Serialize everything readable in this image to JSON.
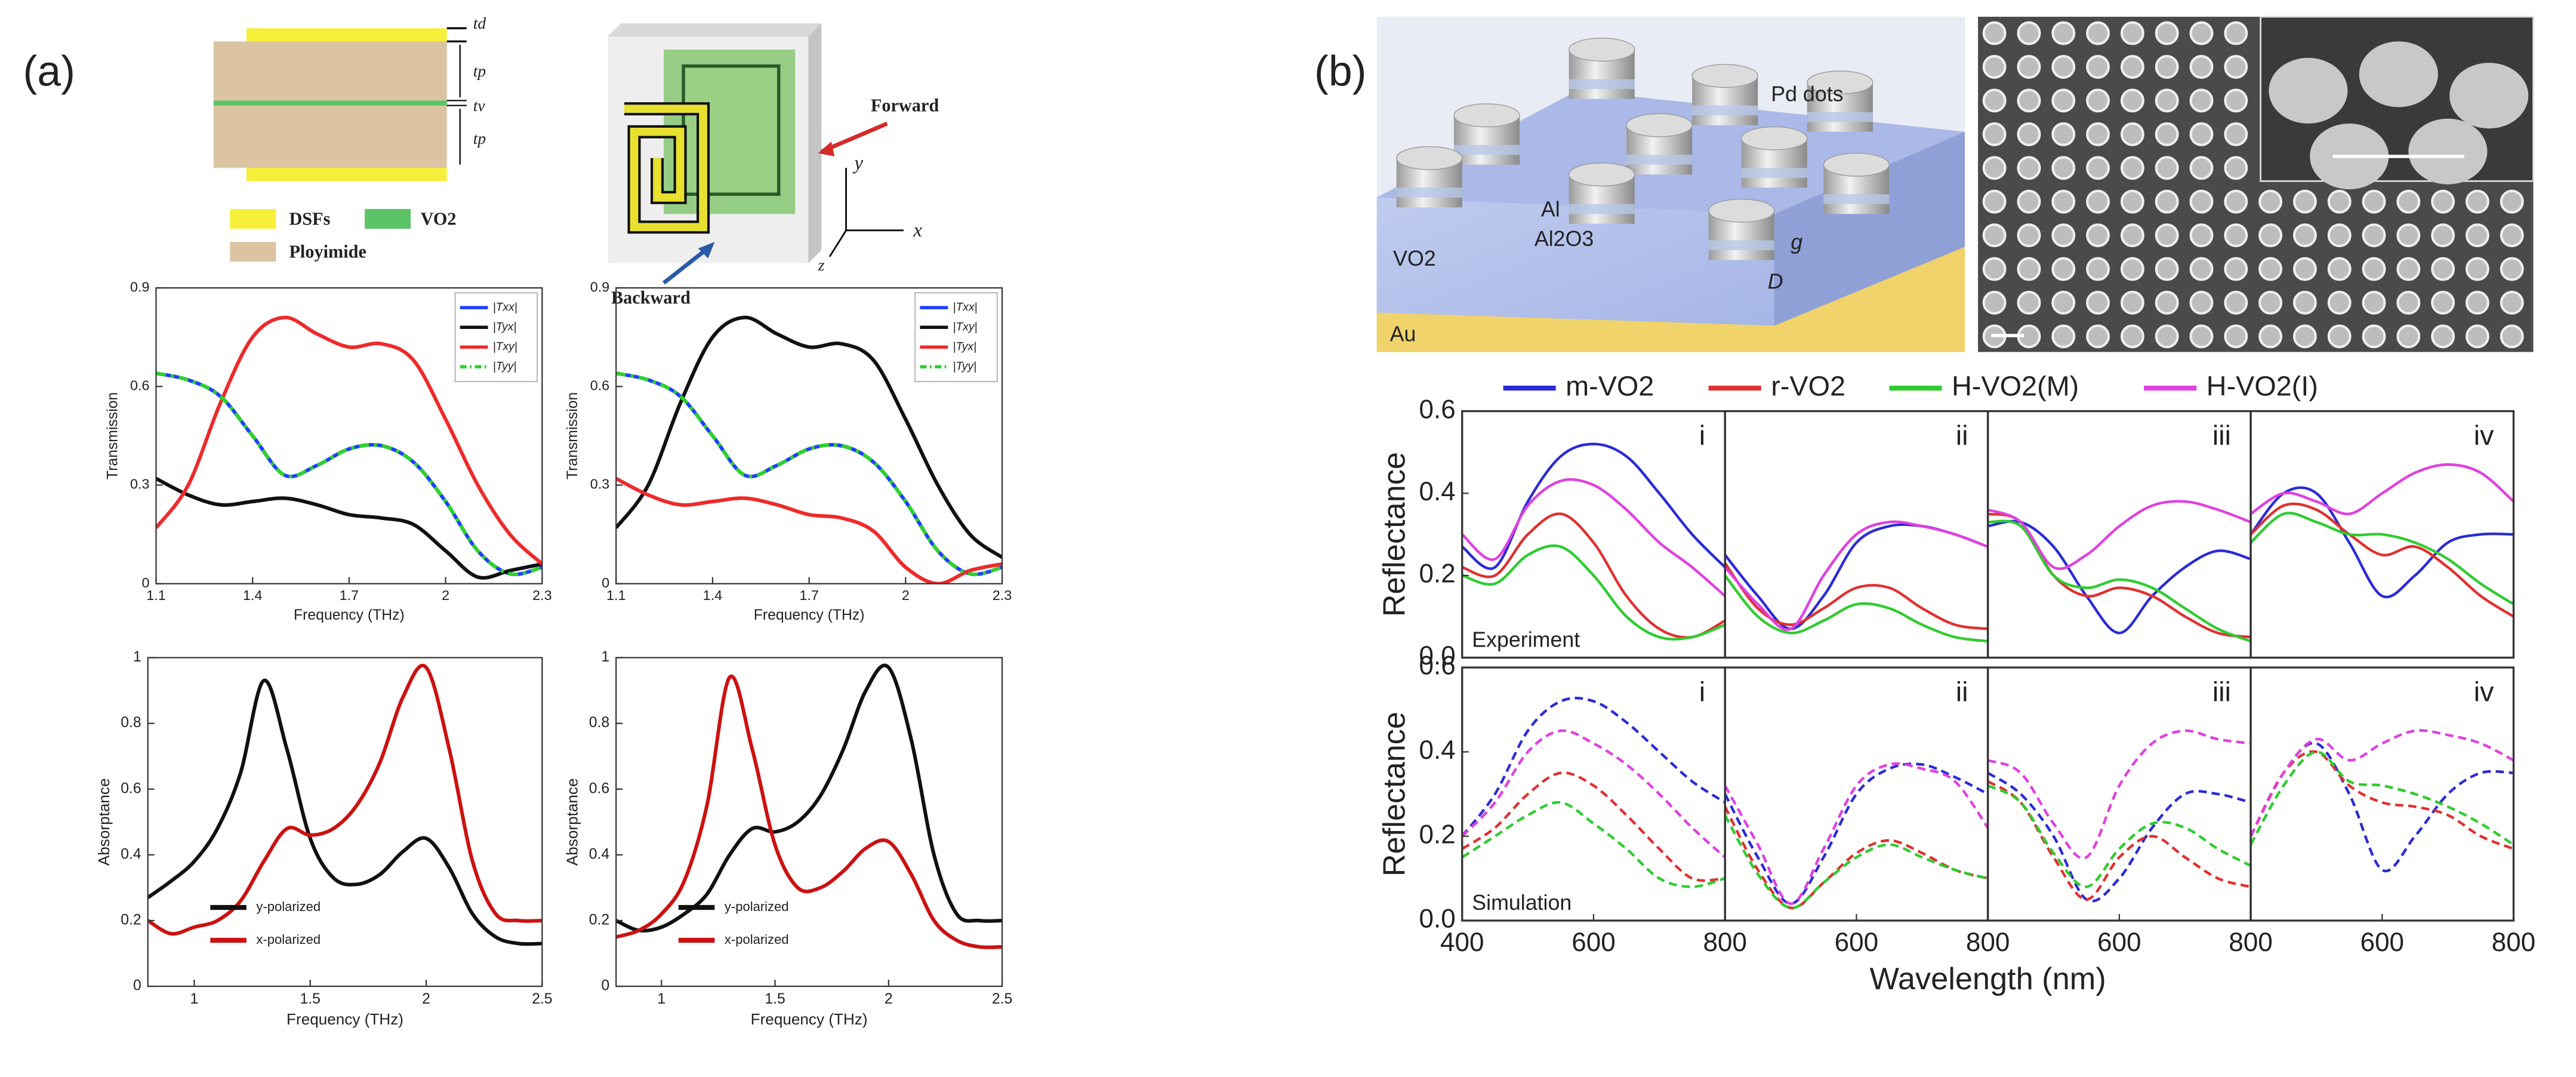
{
  "figure": {
    "panel_a": "(a)",
    "panel_b": "(b)",
    "td": "td",
    "tp1": "tp",
    "tv": "tv",
    "tp2": "tp",
    "dsfs": "DSFs",
    "vo2_legend": "VO2",
    "polyimide": "Ployimide",
    "forward": "Forward",
    "backward": "Backward",
    "ax_x": "x",
    "ax_y": "y",
    "ax_z": "z",
    "pd_dots": "Pd dots",
    "al": "Al",
    "al2o3": "Al2O3",
    "vo2_layer": "VO2",
    "au": "Au",
    "g": "g",
    "D": "D"
  },
  "chart_data": [
    {
      "type": "line",
      "xlabel": "Frequency (THz)",
      "ylabel": "Transmission",
      "legend": "upper right",
      "x": [
        1.1,
        1.2,
        1.3,
        1.4,
        1.5,
        1.6,
        1.7,
        1.8,
        1.9,
        2.0,
        2.1,
        2.2,
        2.3
      ],
      "xlim": [
        1.1,
        2.3
      ],
      "xticks": [
        1.1,
        1.4,
        1.7,
        2,
        2.3
      ],
      "ylim": [
        0,
        0.9
      ],
      "yticks": [
        0,
        0.3,
        0.6,
        0.9
      ],
      "series": [
        {
          "name": "|Txx|",
          "color": "#1f3fff",
          "values": [
            0.64,
            0.62,
            0.57,
            0.45,
            0.33,
            0.36,
            0.41,
            0.42,
            0.37,
            0.25,
            0.1,
            0.03,
            0.05
          ]
        },
        {
          "name": "|Tyx|",
          "color": "#111111",
          "values": [
            0.32,
            0.27,
            0.24,
            0.25,
            0.26,
            0.24,
            0.21,
            0.2,
            0.18,
            0.1,
            0.02,
            0.04,
            0.06
          ]
        },
        {
          "name": "|Txy|",
          "color": "#ee2a2a",
          "values": [
            0.17,
            0.3,
            0.55,
            0.75,
            0.81,
            0.76,
            0.72,
            0.73,
            0.68,
            0.5,
            0.3,
            0.15,
            0.06
          ]
        },
        {
          "name": "|Tyy|",
          "color": "#2ed12e",
          "dashed": true,
          "values": [
            0.64,
            0.62,
            0.57,
            0.45,
            0.33,
            0.36,
            0.41,
            0.42,
            0.37,
            0.25,
            0.1,
            0.03,
            0.05
          ]
        }
      ]
    },
    {
      "type": "line",
      "xlabel": "Frequency (THz)",
      "ylabel": "Transmission",
      "legend": "upper right",
      "x": [
        1.1,
        1.2,
        1.3,
        1.4,
        1.5,
        1.6,
        1.7,
        1.8,
        1.9,
        2.0,
        2.1,
        2.2,
        2.3
      ],
      "xlim": [
        1.1,
        2.3
      ],
      "xticks": [
        1.1,
        1.4,
        1.7,
        2,
        2.3
      ],
      "ylim": [
        0,
        0.9
      ],
      "yticks": [
        0,
        0.3,
        0.6,
        0.9
      ],
      "series": [
        {
          "name": "|Txx|",
          "color": "#1f3fff",
          "values": [
            0.64,
            0.62,
            0.57,
            0.45,
            0.33,
            0.36,
            0.41,
            0.42,
            0.37,
            0.25,
            0.1,
            0.03,
            0.05
          ]
        },
        {
          "name": "|Txy|",
          "color": "#111111",
          "values": [
            0.17,
            0.3,
            0.55,
            0.75,
            0.81,
            0.76,
            0.72,
            0.73,
            0.68,
            0.5,
            0.3,
            0.15,
            0.08
          ]
        },
        {
          "name": "|Tyx|",
          "color": "#ee2a2a",
          "values": [
            0.32,
            0.27,
            0.24,
            0.25,
            0.26,
            0.24,
            0.21,
            0.2,
            0.16,
            0.05,
            0.0,
            0.04,
            0.06
          ]
        },
        {
          "name": "|Tyy|",
          "color": "#2ed12e",
          "dashed": true,
          "values": [
            0.64,
            0.62,
            0.57,
            0.45,
            0.33,
            0.36,
            0.41,
            0.42,
            0.37,
            0.25,
            0.1,
            0.03,
            0.05
          ]
        }
      ]
    },
    {
      "type": "line",
      "xlabel": "Frequency (THz)",
      "ylabel": "Absorptance",
      "legend": "lower left",
      "x": [
        0.8,
        0.9,
        1.0,
        1.1,
        1.2,
        1.3,
        1.4,
        1.5,
        1.6,
        1.7,
        1.8,
        1.9,
        2.0,
        2.1,
        2.2,
        2.3,
        2.4,
        2.5
      ],
      "xlim": [
        0.8,
        2.5
      ],
      "xticks": [
        1,
        1.5,
        2,
        2.5
      ],
      "ylim": [
        0,
        1
      ],
      "yticks": [
        0,
        0.2,
        0.4,
        0.6,
        0.8,
        1
      ],
      "series": [
        {
          "name": "y-polarized",
          "color": "#111111",
          "values": [
            0.27,
            0.32,
            0.38,
            0.48,
            0.65,
            0.93,
            0.72,
            0.45,
            0.33,
            0.31,
            0.34,
            0.41,
            0.45,
            0.36,
            0.22,
            0.15,
            0.13,
            0.13
          ]
        },
        {
          "name": "x-polarized",
          "color": "#cc1111",
          "values": [
            0.2,
            0.16,
            0.18,
            0.2,
            0.26,
            0.38,
            0.48,
            0.46,
            0.48,
            0.55,
            0.68,
            0.88,
            0.97,
            0.72,
            0.38,
            0.22,
            0.2,
            0.2
          ]
        }
      ]
    },
    {
      "type": "line",
      "xlabel": "Frequency (THz)",
      "ylabel": "Absorptance",
      "legend": "lower left",
      "x": [
        0.8,
        0.9,
        1.0,
        1.1,
        1.2,
        1.3,
        1.4,
        1.5,
        1.6,
        1.7,
        1.8,
        1.9,
        2.0,
        2.1,
        2.2,
        2.3,
        2.4,
        2.5
      ],
      "xlim": [
        0.8,
        2.5
      ],
      "xticks": [
        1,
        1.5,
        2,
        2.5
      ],
      "ylim": [
        0,
        1
      ],
      "yticks": [
        0,
        0.2,
        0.4,
        0.6,
        0.8,
        1
      ],
      "series": [
        {
          "name": "y-polarized",
          "color": "#111111",
          "values": [
            0.2,
            0.17,
            0.18,
            0.22,
            0.28,
            0.4,
            0.48,
            0.47,
            0.5,
            0.58,
            0.72,
            0.9,
            0.97,
            0.75,
            0.4,
            0.22,
            0.2,
            0.2
          ]
        },
        {
          "name": "x-polarized",
          "color": "#cc1111",
          "values": [
            0.15,
            0.17,
            0.22,
            0.32,
            0.55,
            0.94,
            0.72,
            0.43,
            0.3,
            0.3,
            0.35,
            0.42,
            0.44,
            0.34,
            0.2,
            0.14,
            0.12,
            0.12
          ]
        }
      ]
    },
    {
      "type": "line",
      "panel_label": "i",
      "annotation": "Experiment",
      "ylabel": "Reflectance",
      "legend": "top",
      "x": [
        400,
        450,
        500,
        550,
        600,
        650,
        700,
        750,
        800
      ],
      "xlim": [
        400,
        800
      ],
      "ylim": [
        0,
        0.6
      ],
      "yticks": [
        {
          "value": 0,
          "label": "0.0"
        },
        {
          "value": 0.2,
          "label": "0.2"
        },
        {
          "value": 0.4,
          "label": "0.4"
        },
        {
          "value": 0.6,
          "label": "0.6"
        }
      ],
      "series": [
        {
          "name": "m-VO2",
          "color": "#2b2bd6",
          "values": [
            0.27,
            0.22,
            0.38,
            0.49,
            0.52,
            0.49,
            0.4,
            0.3,
            0.22
          ]
        },
        {
          "name": "r-VO2",
          "color": "#e03030",
          "values": [
            0.22,
            0.2,
            0.3,
            0.35,
            0.28,
            0.15,
            0.07,
            0.05,
            0.09
          ]
        },
        {
          "name": "H-VO2(M)",
          "color": "#2ecc2e",
          "values": [
            0.2,
            0.18,
            0.25,
            0.27,
            0.2,
            0.1,
            0.05,
            0.05,
            0.08
          ]
        },
        {
          "name": "H-VO2(I)",
          "color": "#e040e0",
          "values": [
            0.3,
            0.24,
            0.37,
            0.43,
            0.42,
            0.36,
            0.28,
            0.22,
            0.15
          ]
        }
      ]
    },
    {
      "type": "line",
      "panel_label": "ii",
      "x": [
        400,
        450,
        500,
        550,
        600,
        650,
        700,
        750,
        800
      ],
      "xlim": [
        400,
        800
      ],
      "ylim": [
        0,
        0.6
      ],
      "series": [
        {
          "color": "#2b2bd6",
          "values": [
            0.25,
            0.15,
            0.07,
            0.15,
            0.28,
            0.32,
            0.32,
            0.3,
            0.27
          ]
        },
        {
          "color": "#e03030",
          "values": [
            0.23,
            0.12,
            0.08,
            0.12,
            0.17,
            0.17,
            0.12,
            0.08,
            0.07
          ]
        },
        {
          "color": "#2ecc2e",
          "values": [
            0.2,
            0.1,
            0.06,
            0.09,
            0.13,
            0.12,
            0.08,
            0.05,
            0.04
          ]
        },
        {
          "color": "#e040e0",
          "values": [
            0.22,
            0.13,
            0.07,
            0.2,
            0.3,
            0.33,
            0.32,
            0.3,
            0.27
          ]
        }
      ]
    },
    {
      "type": "line",
      "panel_label": "iii",
      "x": [
        400,
        450,
        500,
        550,
        600,
        650,
        700,
        750,
        800
      ],
      "xlim": [
        400,
        800
      ],
      "ylim": [
        0,
        0.6
      ],
      "series": [
        {
          "color": "#2b2bd6",
          "values": [
            0.32,
            0.33,
            0.27,
            0.15,
            0.06,
            0.15,
            0.22,
            0.26,
            0.24
          ]
        },
        {
          "color": "#e03030",
          "values": [
            0.35,
            0.33,
            0.2,
            0.15,
            0.17,
            0.15,
            0.1,
            0.06,
            0.05
          ]
        },
        {
          "color": "#2ecc2e",
          "values": [
            0.33,
            0.32,
            0.2,
            0.17,
            0.19,
            0.17,
            0.12,
            0.07,
            0.04
          ]
        },
        {
          "color": "#e040e0",
          "values": [
            0.36,
            0.33,
            0.22,
            0.25,
            0.32,
            0.37,
            0.38,
            0.36,
            0.33
          ]
        }
      ]
    },
    {
      "type": "line",
      "panel_label": "iv",
      "x": [
        400,
        450,
        500,
        550,
        600,
        650,
        700,
        750,
        800
      ],
      "xlim": [
        400,
        800
      ],
      "ylim": [
        0,
        0.6
      ],
      "series": [
        {
          "color": "#2b2bd6",
          "values": [
            0.3,
            0.4,
            0.4,
            0.28,
            0.15,
            0.2,
            0.28,
            0.3,
            0.3
          ]
        },
        {
          "color": "#e03030",
          "values": [
            0.3,
            0.37,
            0.36,
            0.3,
            0.25,
            0.27,
            0.22,
            0.15,
            0.1
          ]
        },
        {
          "color": "#2ecc2e",
          "values": [
            0.28,
            0.35,
            0.33,
            0.3,
            0.3,
            0.28,
            0.24,
            0.18,
            0.13
          ]
        },
        {
          "color": "#e040e0",
          "values": [
            0.35,
            0.4,
            0.38,
            0.35,
            0.4,
            0.45,
            0.47,
            0.45,
            0.38
          ]
        }
      ]
    },
    {
      "type": "line",
      "panel_label": "i",
      "annotation": "Simulation",
      "ylabel": "Reflectance",
      "dashed": true,
      "x": [
        400,
        450,
        500,
        550,
        600,
        650,
        700,
        750,
        800
      ],
      "xlim": [
        400,
        800
      ],
      "xticks": [
        400,
        600,
        800
      ],
      "ylim": [
        0,
        0.6
      ],
      "yticks": [
        {
          "value": 0,
          "label": "0.0"
        },
        {
          "value": 0.2,
          "label": "0.2"
        },
        {
          "value": 0.4,
          "label": "0.4"
        },
        {
          "value": 0.6,
          "label": "0.6"
        }
      ],
      "series": [
        {
          "color": "#2b2bd6",
          "values": [
            0.2,
            0.3,
            0.45,
            0.52,
            0.52,
            0.47,
            0.4,
            0.33,
            0.28
          ]
        },
        {
          "color": "#e03030",
          "values": [
            0.17,
            0.22,
            0.3,
            0.35,
            0.32,
            0.25,
            0.17,
            0.1,
            0.1
          ]
        },
        {
          "color": "#2ecc2e",
          "values": [
            0.15,
            0.2,
            0.25,
            0.28,
            0.23,
            0.17,
            0.1,
            0.08,
            0.1
          ]
        },
        {
          "color": "#e040e0",
          "values": [
            0.2,
            0.28,
            0.4,
            0.45,
            0.42,
            0.37,
            0.3,
            0.22,
            0.15
          ]
        }
      ]
    },
    {
      "type": "line",
      "panel_label": "ii",
      "dashed": true,
      "xlabel": "Wavelength (nm)",
      "x": [
        400,
        450,
        500,
        550,
        600,
        650,
        700,
        750,
        800
      ],
      "xlim": [
        400,
        800
      ],
      "xticks": [
        600,
        800
      ],
      "ylim": [
        0,
        0.6
      ],
      "series": [
        {
          "color": "#2b2bd6",
          "values": [
            0.3,
            0.15,
            0.04,
            0.15,
            0.3,
            0.36,
            0.37,
            0.34,
            0.3
          ]
        },
        {
          "color": "#e03030",
          "values": [
            0.27,
            0.12,
            0.03,
            0.09,
            0.16,
            0.19,
            0.16,
            0.12,
            0.1
          ]
        },
        {
          "color": "#2ecc2e",
          "values": [
            0.25,
            0.11,
            0.03,
            0.09,
            0.15,
            0.18,
            0.15,
            0.12,
            0.1
          ]
        },
        {
          "color": "#e040e0",
          "values": [
            0.32,
            0.18,
            0.04,
            0.17,
            0.32,
            0.37,
            0.36,
            0.33,
            0.22
          ]
        }
      ]
    },
    {
      "type": "line",
      "panel_label": "iii",
      "dashed": true,
      "x": [
        400,
        450,
        500,
        550,
        600,
        650,
        700,
        750,
        800
      ],
      "xlim": [
        400,
        800
      ],
      "xticks": [
        600,
        800
      ],
      "ylim": [
        0,
        0.6
      ],
      "series": [
        {
          "color": "#2b2bd6",
          "values": [
            0.35,
            0.3,
            0.2,
            0.05,
            0.1,
            0.22,
            0.3,
            0.3,
            0.28
          ]
        },
        {
          "color": "#e03030",
          "values": [
            0.33,
            0.28,
            0.15,
            0.05,
            0.15,
            0.2,
            0.15,
            0.1,
            0.08
          ]
        },
        {
          "color": "#2ecc2e",
          "values": [
            0.32,
            0.28,
            0.16,
            0.08,
            0.17,
            0.23,
            0.22,
            0.17,
            0.13
          ]
        },
        {
          "color": "#e040e0",
          "values": [
            0.38,
            0.35,
            0.23,
            0.15,
            0.32,
            0.42,
            0.45,
            0.43,
            0.42
          ]
        }
      ]
    },
    {
      "type": "line",
      "panel_label": "iv",
      "dashed": true,
      "x": [
        400,
        450,
        500,
        550,
        600,
        650,
        700,
        750,
        800
      ],
      "xlim": [
        400,
        800
      ],
      "xticks": [
        600,
        800
      ],
      "ylim": [
        0,
        0.6
      ],
      "series": [
        {
          "color": "#2b2bd6",
          "values": [
            0.2,
            0.35,
            0.42,
            0.3,
            0.12,
            0.2,
            0.3,
            0.35,
            0.35
          ]
        },
        {
          "color": "#e03030",
          "values": [
            0.2,
            0.35,
            0.4,
            0.32,
            0.28,
            0.27,
            0.25,
            0.2,
            0.17
          ]
        },
        {
          "color": "#2ecc2e",
          "values": [
            0.18,
            0.32,
            0.4,
            0.33,
            0.32,
            0.3,
            0.27,
            0.23,
            0.18
          ]
        },
        {
          "color": "#e040e0",
          "values": [
            0.2,
            0.35,
            0.43,
            0.38,
            0.42,
            0.45,
            0.44,
            0.42,
            0.38
          ]
        }
      ]
    }
  ]
}
